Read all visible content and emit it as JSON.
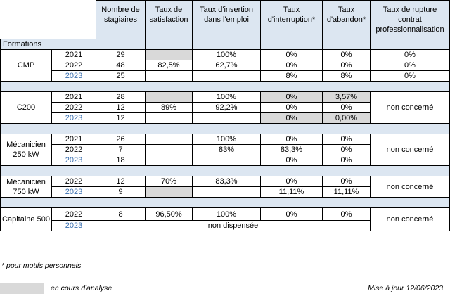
{
  "header": {
    "col1": "Nombre de stagiaires",
    "col2": "Taux de satisfaction",
    "col3": "Taux d'insertion dans l'emploi",
    "col4": "Taux d'interruption*",
    "col5": "Taux d'abandon*",
    "col6": "Taux de rupture contrat professionnalisation"
  },
  "formations_label": "Formations",
  "cmp": {
    "name": "CMP",
    "rows": [
      {
        "year": "2021",
        "n": "29",
        "sat": "",
        "ins": "100%",
        "intr": "0%",
        "ab": "0%",
        "rup": "0%"
      },
      {
        "year": "2022",
        "n": "48",
        "sat": "82,5%",
        "ins": "62,7%",
        "intr": "0%",
        "ab": "0%",
        "rup": "0%"
      },
      {
        "year": "2023",
        "n": "25",
        "sat": "",
        "ins": "",
        "intr": "8%",
        "ab": "8%",
        "rup": "0%"
      }
    ]
  },
  "c200": {
    "name": "C200",
    "rup": "non concerné",
    "rows": [
      {
        "year": "2021",
        "n": "28",
        "sat": "",
        "ins": "100%",
        "intr": "0%",
        "ab": "3,57%"
      },
      {
        "year": "2022",
        "n": "12",
        "sat": "89%",
        "ins": "92,2%",
        "intr": "0%",
        "ab": "0%"
      },
      {
        "year": "2023",
        "n": "12",
        "sat": "",
        "ins": "",
        "intr": "0%",
        "ab": "0,00%"
      }
    ]
  },
  "mec250": {
    "name": "Mécanicien 250 kW",
    "rup": "non concerné",
    "rows": [
      {
        "year": "2021",
        "n": "26",
        "sat": "",
        "ins": "100%",
        "intr": "0%",
        "ab": "0%"
      },
      {
        "year": "2022",
        "n": "7",
        "sat": "",
        "ins": "83%",
        "intr": "83,3%",
        "ab": "0%"
      },
      {
        "year": "2023",
        "n": "18",
        "sat": "",
        "ins": "",
        "intr": "0%",
        "ab": "0%"
      }
    ]
  },
  "mec750": {
    "name": "Mécanicien 750 kW",
    "rup": "non concerné",
    "rows": [
      {
        "year": "2022",
        "n": "12",
        "sat": "70%",
        "ins": "83,3%",
        "intr": "0%",
        "ab": "0%"
      },
      {
        "year": "2023",
        "n": "9",
        "sat": "",
        "ins": "",
        "intr": "11,11%",
        "ab": "11,11%"
      }
    ]
  },
  "cap500": {
    "name": "Capitaine 500",
    "rup": "non concerné",
    "row2022": {
      "year": "2022",
      "n": "8",
      "sat": "96,50%",
      "ins": "100%",
      "intr": "0%",
      "ab": "0%"
    },
    "year2023": "2023",
    "not_offered": "non dispensée"
  },
  "footnote": "* pour motifs personnels",
  "legend_text": "en cours d'analyse",
  "updated": "Mise à jour 12/06/2023",
  "colors": {
    "header_bg": "#dce6f1",
    "grey": "#d9d9d9",
    "year_2023": "#3a6fb0"
  }
}
